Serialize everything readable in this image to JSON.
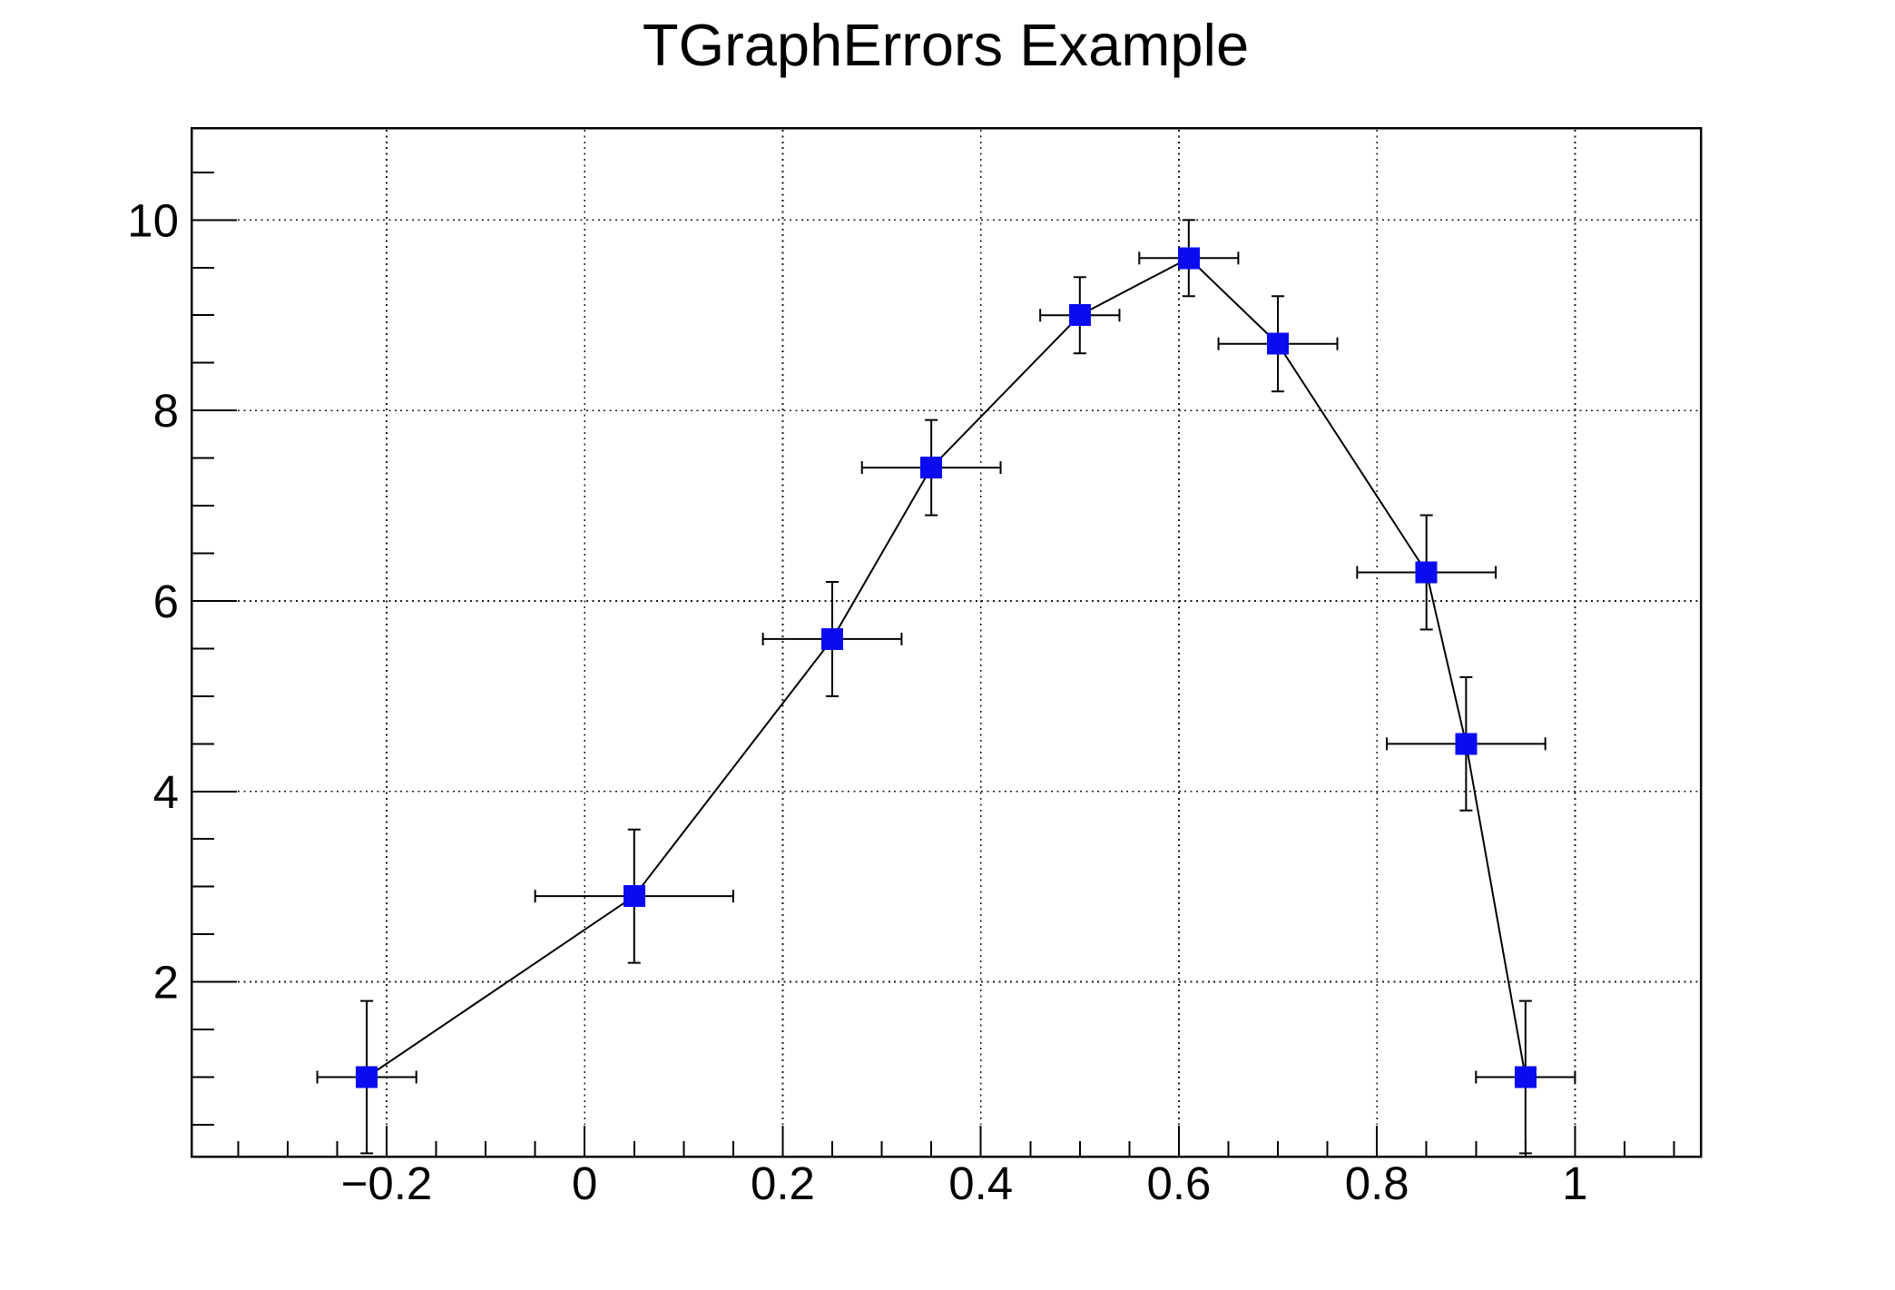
{
  "chart_data": {
    "type": "scatter",
    "title": "TGraphErrors Example",
    "x": [
      -0.22,
      0.05,
      0.25,
      0.35,
      0.5,
      0.61,
      0.7,
      0.85,
      0.89,
      0.95
    ],
    "y": [
      1,
      2.9,
      5.6,
      7.4,
      9,
      9.6,
      8.7,
      6.3,
      4.5,
      1
    ],
    "ex": [
      0.05,
      0.1,
      0.07,
      0.07,
      0.04,
      0.05,
      0.06,
      0.07,
      0.08,
      0.05
    ],
    "ey": [
      0.8,
      0.7,
      0.6,
      0.5,
      0.4,
      0.4,
      0.5,
      0.6,
      0.7,
      0.8
    ],
    "xlim": [
      -0.397,
      1.127
    ],
    "ylim": [
      0.166,
      10.966
    ],
    "x_major_ticks": [
      -0.2,
      0,
      0.2,
      0.4,
      0.6,
      0.8,
      1
    ],
    "x_tick_labels": [
      "−0.2",
      "0",
      "0.2",
      "0.4",
      "0.6",
      "0.8",
      "1"
    ],
    "x_minor_step": 0.05,
    "y_major_ticks": [
      2,
      4,
      6,
      8,
      10
    ],
    "y_tick_labels": [
      "2",
      "4",
      "6",
      "8",
      "10"
    ],
    "y_minor_step": 0.5,
    "grid": true,
    "grid_style": "dotted",
    "legend_position": "none",
    "xlabel": "",
    "ylabel": "",
    "marker_shape": "filled-square",
    "marker_color": "#0b0bf0",
    "marker_size": 24,
    "line_color": "#000000",
    "error_bar_color": "#000000",
    "frame_color": "#000000",
    "grid_color": "#1a1a1a",
    "background_color": "#ffffff"
  }
}
